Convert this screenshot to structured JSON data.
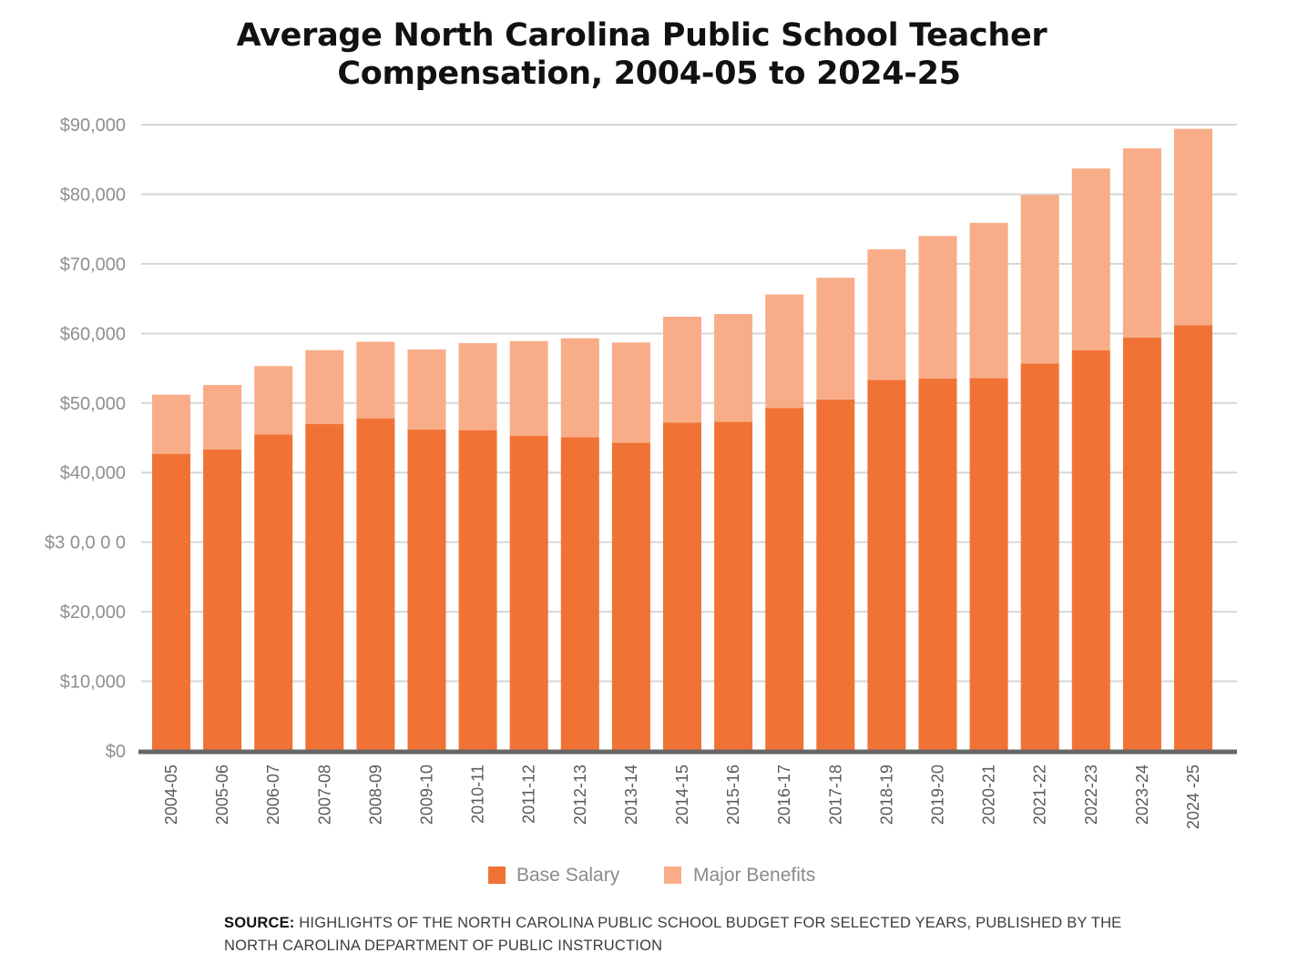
{
  "chart_data": {
    "type": "bar",
    "stacked": true,
    "title": "Average North Carolina Public School Teacher Compensation, 2004-05 to 2024-25",
    "title_lines": [
      "Average North Carolina Public School Teacher",
      "Compensation, 2004-05 to 2024-25"
    ],
    "categories": [
      "2004-05",
      "2005-06",
      "2006-07",
      "2007-08",
      "2008-09",
      "2009-10",
      "2010-11",
      "2011-12",
      "2012-13",
      "2013-14",
      "2014-15",
      "2015-16",
      "2016-17",
      "2017-18",
      "2018-19",
      "2019-20",
      "2020-21",
      "2021-22",
      "2022-23",
      "2023-24",
      "2024 -25"
    ],
    "series": [
      {
        "name": "Base Salary",
        "color": "#f07335",
        "values": [
          42700,
          43300,
          45500,
          47000,
          47800,
          46200,
          46100,
          45300,
          45100,
          44300,
          47200,
          47300,
          49300,
          50500,
          53300,
          53500,
          53600,
          55700,
          57600,
          59400,
          61200
        ]
      },
      {
        "name": "Major Benefits",
        "color": "#f8ad88",
        "values": [
          8500,
          9300,
          9800,
          10600,
          11000,
          11500,
          12500,
          13600,
          14200,
          14400,
          15200,
          15500,
          16300,
          17500,
          18800,
          20500,
          22300,
          24200,
          26100,
          27200,
          28200
        ]
      }
    ],
    "xlabel": "",
    "ylabel": "",
    "ylim": [
      0,
      90000
    ],
    "y_ticks": [
      0,
      10000,
      20000,
      30000,
      40000,
      50000,
      60000,
      70000,
      80000,
      90000
    ],
    "y_tick_labels": [
      "$0",
      "$10,000",
      "$20,000",
      "$3 0,0 0 0",
      "$40,000",
      "$50,000",
      "$60,000",
      "$70,000",
      "$80,000",
      "$90,000"
    ],
    "grid": true,
    "x_tick_rotation": "vertical",
    "legend_position": "bottom-center"
  },
  "source": {
    "label": "SOURCE:",
    "text": "HIGHLIGHTS OF THE NORTH CAROLINA PUBLIC SCHOOL BUDGET FOR SELECTED YEARS, PUBLISHED BY THE NORTH CAROLINA DEPARTMENT OF PUBLIC INSTRUCTION"
  }
}
